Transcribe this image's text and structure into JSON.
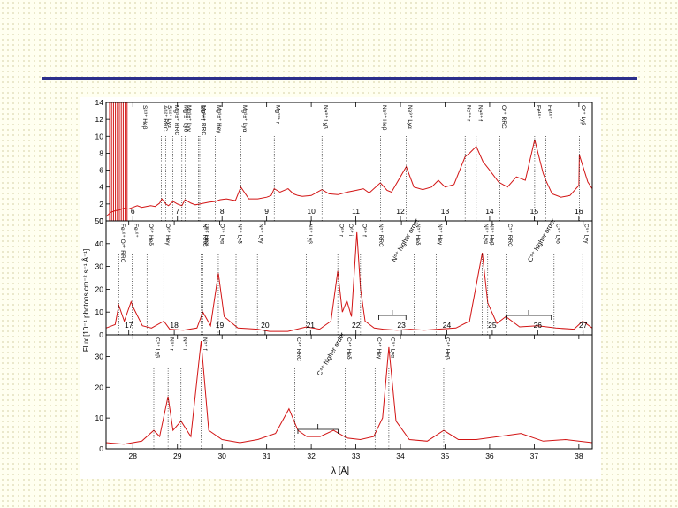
{
  "chart_data": {
    "type": "line",
    "ylabel": "Flux [10⁻⁴ photons cm⁻² s⁻¹ Å⁻¹]",
    "xlabel": "λ [Å]",
    "colors": {
      "spectrum": "#d21414",
      "axes": "#000000",
      "rule": "#2b2f8c"
    },
    "panels": [
      {
        "xlim": [
          5.4,
          16.3
        ],
        "ylim": [
          0,
          14
        ],
        "xticks": [
          6,
          7,
          8,
          9,
          10,
          11,
          12,
          13,
          14,
          15,
          16
        ],
        "yticks": [
          0,
          2,
          4,
          6,
          8,
          10,
          12,
          14
        ],
        "spectrum": {
          "x": [
            5.4,
            5.5,
            5.6,
            5.7,
            5.8,
            5.9,
            6.0,
            6.1,
            6.2,
            6.3,
            6.4,
            6.5,
            6.6,
            6.65,
            6.74,
            6.8,
            6.9,
            7.0,
            7.1,
            7.17,
            7.3,
            7.4,
            7.5,
            7.6,
            7.7,
            7.85,
            7.95,
            8.1,
            8.2,
            8.3,
            8.42,
            8.6,
            8.8,
            9.0,
            9.1,
            9.17,
            9.3,
            9.48,
            9.6,
            9.7,
            9.8,
            10.0,
            10.24,
            10.4,
            10.6,
            10.8,
            11.0,
            11.17,
            11.3,
            11.55,
            11.7,
            11.8,
            12.13,
            12.3,
            12.5,
            12.7,
            12.85,
            13.0,
            13.2,
            13.45,
            13.55,
            13.7,
            13.85,
            14.0,
            14.2,
            14.4,
            14.6,
            14.8,
            15.01,
            15.2,
            15.26,
            15.4,
            15.6,
            15.8,
            16.0,
            16.01,
            16.2,
            16.3
          ],
          "y": [
            0.5,
            1.0,
            1.2,
            1.3,
            1.5,
            1.4,
            1.6,
            1.8,
            1.6,
            1.7,
            1.8,
            1.7,
            2.1,
            2.6,
            2.0,
            1.8,
            2.3,
            2.0,
            1.8,
            2.5,
            2.1,
            1.9,
            2.0,
            2.1,
            2.2,
            2.3,
            2.5,
            2.6,
            2.5,
            2.4,
            4.0,
            2.6,
            2.6,
            2.8,
            3.0,
            3.8,
            3.4,
            3.8,
            3.2,
            3.0,
            2.9,
            3.0,
            3.7,
            3.2,
            3.1,
            3.4,
            3.6,
            3.8,
            3.3,
            4.5,
            3.6,
            3.4,
            6.4,
            4.0,
            3.7,
            4.0,
            4.8,
            4.0,
            4.3,
            7.6,
            8.0,
            8.8,
            7.0,
            6.0,
            4.6,
            4.0,
            5.2,
            4.8,
            9.6,
            5.6,
            4.8,
            3.2,
            2.8,
            3.0,
            4.2,
            7.8,
            4.6,
            3.8
          ]
        },
        "lines": [
          {
            "x": 6.18,
            "label": "Si¹³⁺ Heβ"
          },
          {
            "x": 6.64,
            "label": "Al¹²⁺ RRC"
          },
          {
            "x": 6.74,
            "label": "Si¹²⁺ Lyα"
          },
          {
            "x": 6.9,
            "label": "Mg¹±⁺ RRC"
          },
          {
            "x": 7.1,
            "label": "Mg¹±⁺ Lyδ"
          },
          {
            "x": 7.17,
            "label": "Mg¹±⁺ Lyγ"
          },
          {
            "x": 7.47,
            "label": "Si¹²⁺ f"
          },
          {
            "x": 7.5,
            "label": "Mg¹±⁺ RRC"
          },
          {
            "x": 7.85,
            "label": "Mg¹±⁺ Heγ"
          },
          {
            "x": 8.42,
            "label": "Mg¹±⁺ Lyα"
          },
          {
            "x": 9.17,
            "label": "Mg¹°⁺ r"
          },
          {
            "x": 10.24,
            "label": "Ne⁹⁺ Lyβ"
          },
          {
            "x": 11.55,
            "label": "Ne⁸⁺ Heβ"
          },
          {
            "x": 12.13,
            "label": "Ne⁹⁺ Lyα"
          },
          {
            "x": 13.45,
            "label": "Ne⁸⁺ r"
          },
          {
            "x": 13.7,
            "label": "Ne⁸⁺ f"
          },
          {
            "x": 14.23,
            "label": "O⁷⁺ RRC"
          },
          {
            "x": 15.01,
            "label": "Fe¹⁶⁺"
          },
          {
            "x": 15.26,
            "label": "Fe¹⁶⁺"
          },
          {
            "x": 16.01,
            "label": "O⁷⁺ Lyβ"
          }
        ]
      },
      {
        "xlim": [
          16.5,
          27.2
        ],
        "ylim": [
          0,
          50
        ],
        "xticks": [
          17,
          18,
          19,
          20,
          21,
          22,
          23,
          24,
          25,
          26,
          27
        ],
        "yticks": [
          0,
          10,
          20,
          30,
          40,
          50
        ],
        "spectrum": {
          "x": [
            16.5,
            16.7,
            16.78,
            16.9,
            17.05,
            17.1,
            17.3,
            17.5,
            17.77,
            17.9,
            18.2,
            18.5,
            18.63,
            18.8,
            18.97,
            19.1,
            19.4,
            19.83,
            20.1,
            20.5,
            20.91,
            21.2,
            21.45,
            21.6,
            21.7,
            21.8,
            21.9,
            22.02,
            22.1,
            22.2,
            22.4,
            22.6,
            22.9,
            23.2,
            23.5,
            23.8,
            24.2,
            24.5,
            24.78,
            24.9,
            25.1,
            25.3,
            25.6,
            26.0,
            26.4,
            26.8,
            26.99,
            27.2
          ],
          "y": [
            3.0,
            4.5,
            13.0,
            6.0,
            14.5,
            12.0,
            4.0,
            3.0,
            6.0,
            2.5,
            2.0,
            3.0,
            10.0,
            4.0,
            27.0,
            8.0,
            3.0,
            2.5,
            1.5,
            1.5,
            3.5,
            2.5,
            6.0,
            28.0,
            10.0,
            15.0,
            8.0,
            45.0,
            20.0,
            6.0,
            3.0,
            2.5,
            2.0,
            2.5,
            2.0,
            2.5,
            3.0,
            6.0,
            36.0,
            14.0,
            5.0,
            8.0,
            3.5,
            4.0,
            3.0,
            2.5,
            6.0,
            3.0
          ]
        },
        "lines": [
          {
            "x": 16.78,
            "label": "Fe¹⁶⁺ O⁷⁺ RRC"
          },
          {
            "x": 17.07,
            "label": "Fe¹⁶⁺"
          },
          {
            "x": 17.4,
            "label": "O⁶⁺ Heδ"
          },
          {
            "x": 17.77,
            "label": "O⁶⁺ Heγ"
          },
          {
            "x": 18.59,
            "label": "N⁶⁺ RRC"
          },
          {
            "x": 18.63,
            "label": "O⁶⁺ Heβ"
          },
          {
            "x": 18.97,
            "label": "O⁷⁺ Lyα"
          },
          {
            "x": 19.36,
            "label": "N⁶⁺ Lyδ"
          },
          {
            "x": 19.83,
            "label": "N⁶⁺ Lyγ"
          },
          {
            "x": 20.91,
            "label": "N⁶⁺ Lyβ"
          },
          {
            "x": 21.6,
            "label": "O⁶⁺ r"
          },
          {
            "x": 21.8,
            "label": "O⁶⁺ i"
          },
          {
            "x": 22.1,
            "label": "O⁶⁺ f"
          },
          {
            "x": 22.46,
            "label": "N⁵⁺ RRC"
          },
          {
            "x": 23.28,
            "label": "N⁵⁺ Heδ"
          },
          {
            "x": 23.77,
            "label": "N⁵⁺ Heγ"
          },
          {
            "x": 24.78,
            "label": "N⁶⁺ Lyα"
          },
          {
            "x": 24.9,
            "label": "N⁵⁺ Heβ"
          },
          {
            "x": 25.3,
            "label": "C⁵⁺ RRC"
          },
          {
            "x": 26.36,
            "label": "C⁵⁺ Lyδ"
          },
          {
            "x": 26.99,
            "label": "C⁵⁺ Lyγ"
          }
        ],
        "brackets": [
          {
            "x1": 22.5,
            "x2": 23.1,
            "label": "N⁶⁺ higher order"
          },
          {
            "x1": 25.3,
            "x2": 26.3,
            "label": "C⁵⁺ higher order"
          }
        ]
      },
      {
        "xlim": [
          27.4,
          38.3
        ],
        "ylim": [
          0,
          37
        ],
        "xticks": [
          28,
          29,
          30,
          31,
          32,
          33,
          34,
          35,
          36,
          37,
          38
        ],
        "yticks": [
          0,
          10,
          20,
          30
        ],
        "spectrum": {
          "x": [
            27.4,
            27.8,
            28.2,
            28.47,
            28.6,
            28.79,
            28.9,
            29.08,
            29.3,
            29.53,
            29.7,
            30.0,
            30.4,
            30.8,
            31.2,
            31.5,
            31.7,
            31.9,
            32.2,
            32.5,
            32.8,
            33.1,
            33.4,
            33.6,
            33.74,
            33.9,
            34.2,
            34.6,
            34.97,
            35.3,
            35.7,
            36.2,
            36.7,
            37.2,
            37.7,
            38.3
          ],
          "y": [
            2.0,
            1.5,
            2.5,
            6.0,
            4.0,
            17.0,
            6.0,
            9.0,
            4.0,
            35.0,
            6.0,
            3.0,
            2.0,
            3.0,
            5.0,
            13.0,
            6.0,
            4.0,
            4.0,
            6.0,
            3.5,
            3.0,
            4.0,
            10.0,
            33.0,
            9.0,
            3.0,
            2.5,
            6.0,
            3.0,
            3.0,
            4.0,
            5.0,
            2.5,
            3.0,
            2.0
          ]
        },
        "lines": [
          {
            "x": 28.47,
            "label": "C⁵⁺ Lyβ"
          },
          {
            "x": 28.79,
            "label": "N⁵⁺ r"
          },
          {
            "x": 29.08,
            "label": "N⁵⁺ i"
          },
          {
            "x": 29.53,
            "label": "N⁵⁺ f"
          },
          {
            "x": 31.63,
            "label": "C⁴⁺ RRC"
          },
          {
            "x": 32.76,
            "label": "C⁴⁺ Heδ"
          },
          {
            "x": 33.43,
            "label": "C⁴⁺ Heγ"
          },
          {
            "x": 33.74,
            "label": "C⁵⁺ Lyα"
          },
          {
            "x": 34.97,
            "label": "C⁴⁺ Heβ"
          }
        ],
        "brackets": [
          {
            "x1": 31.7,
            "x2": 32.6,
            "label": "C⁴⁺ higher order"
          }
        ]
      }
    ]
  }
}
